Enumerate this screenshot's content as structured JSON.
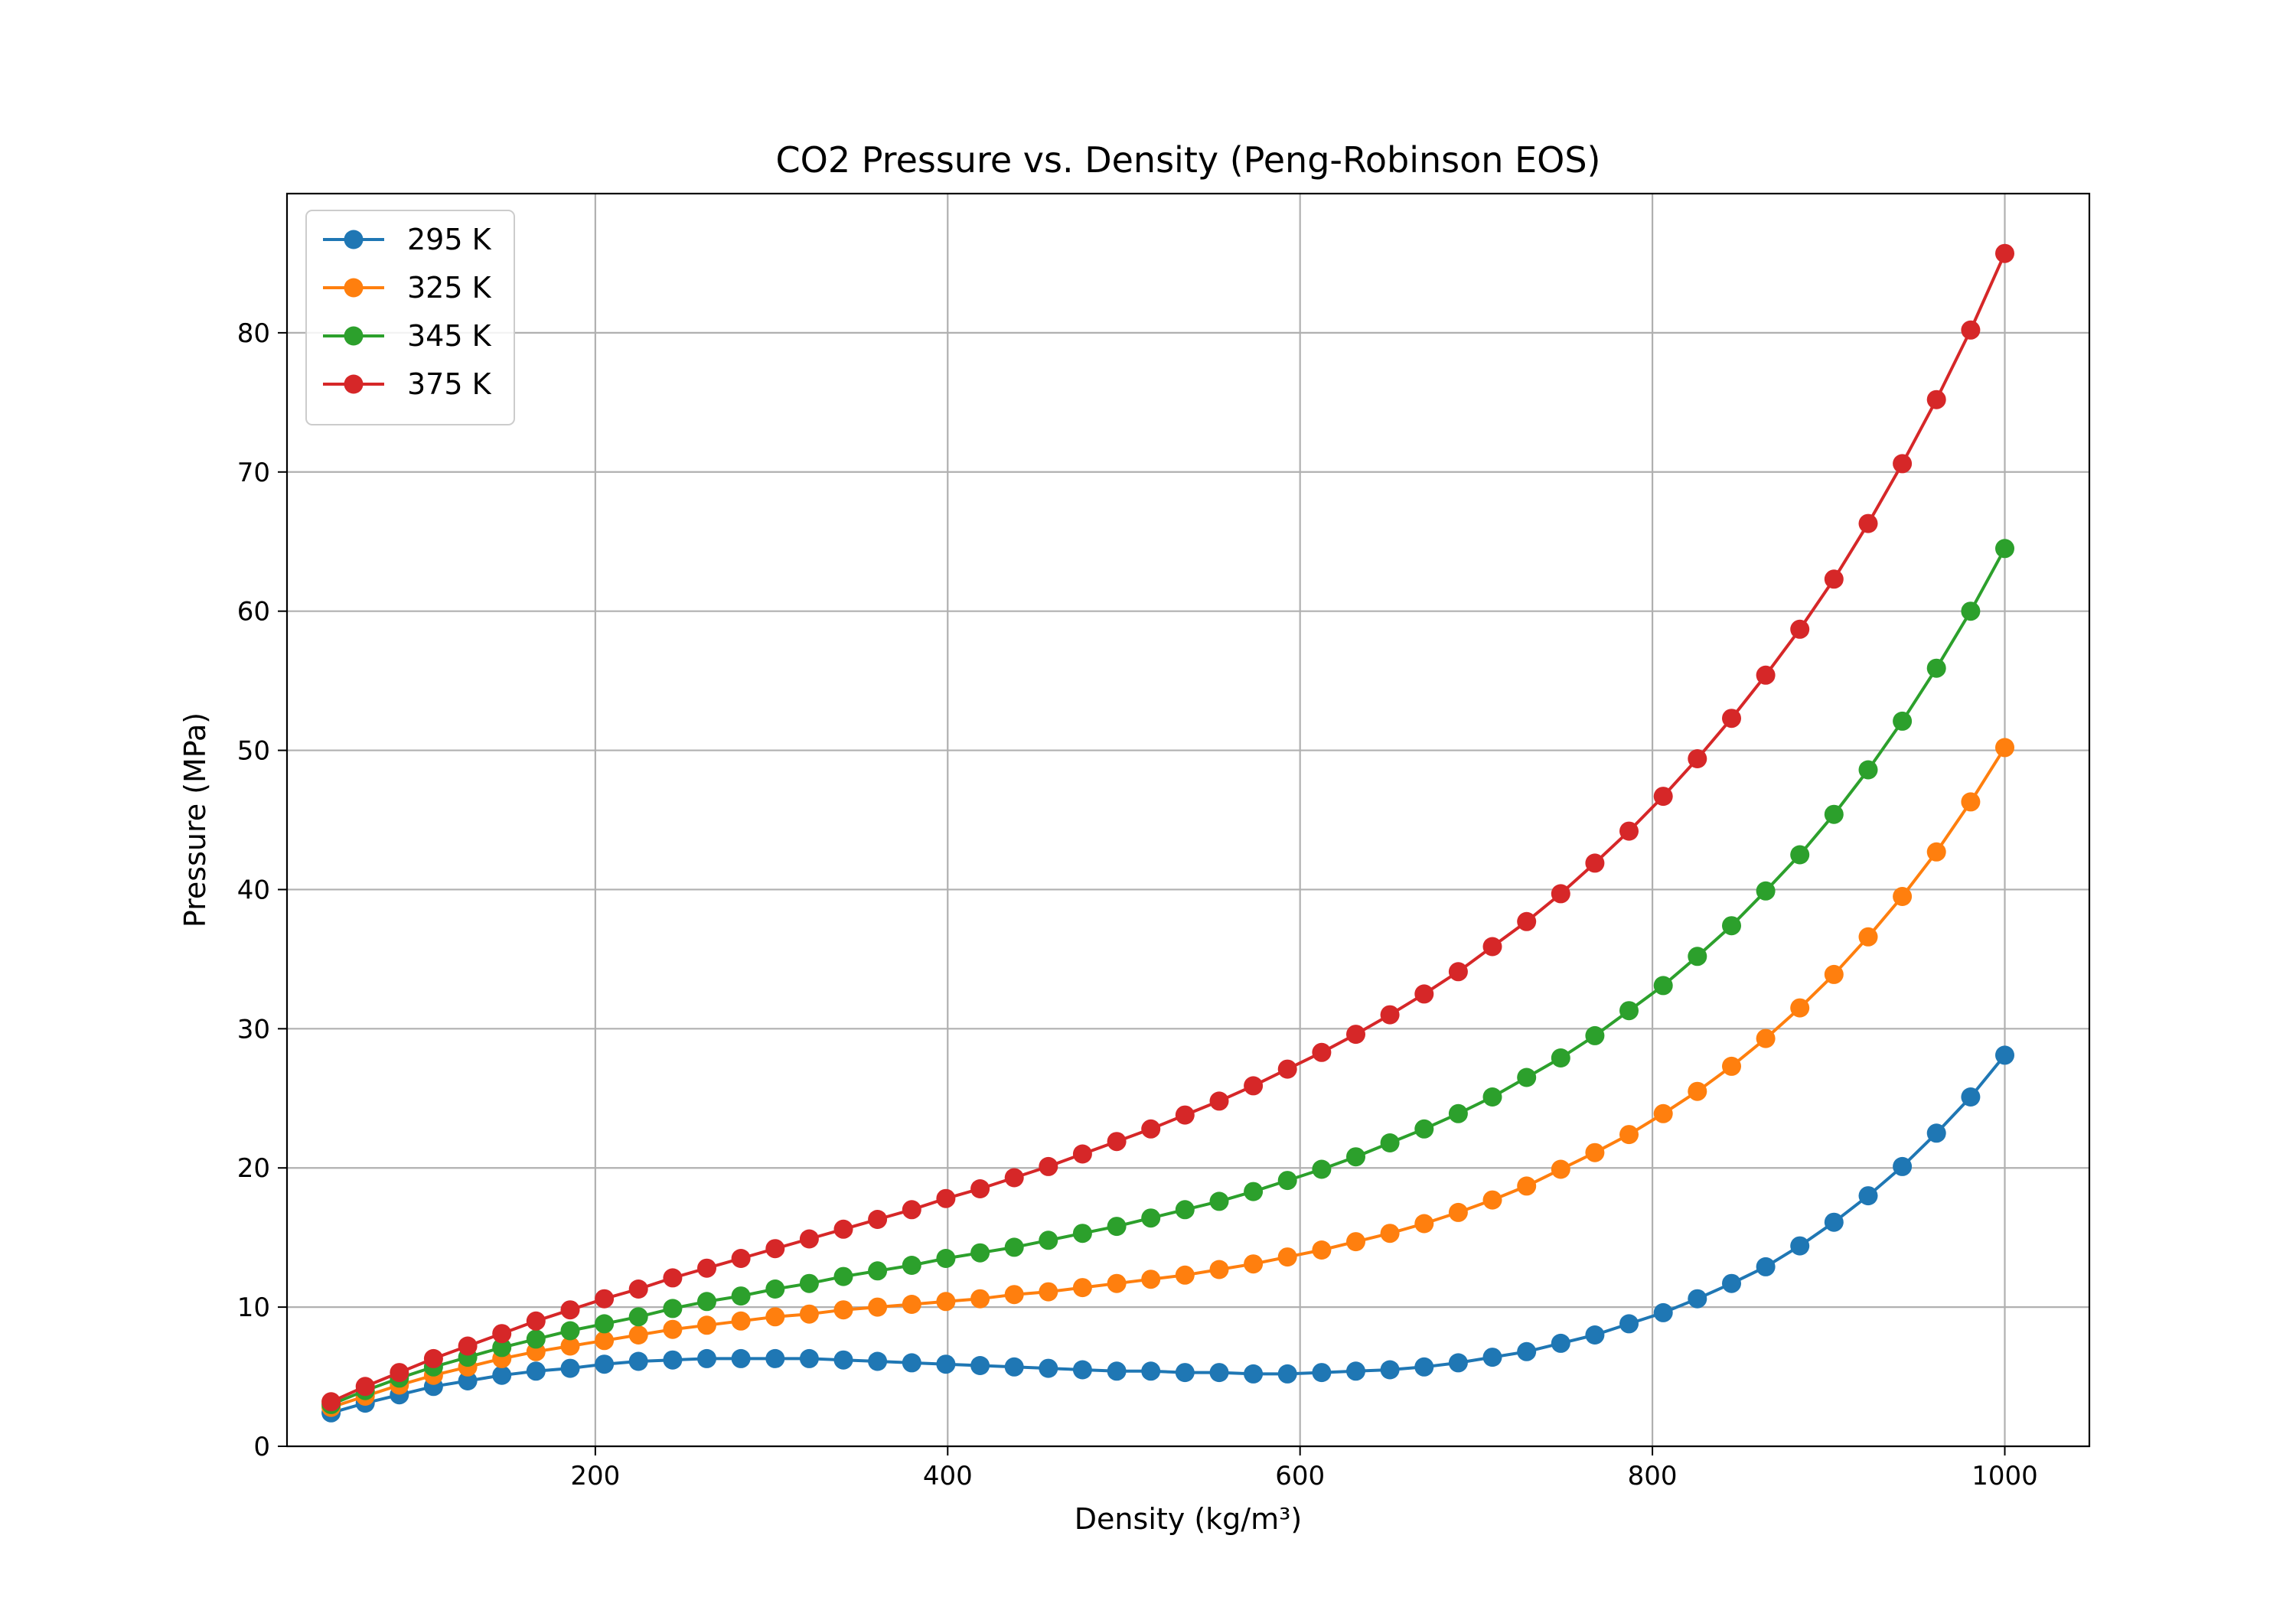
{
  "chart_data": {
    "type": "line",
    "title": "CO2 Pressure vs. Density (Peng-Robinson EOS)",
    "xlabel": "Density (kg/m³)",
    "ylabel": "Pressure (MPa)",
    "xlim": [
      25,
      1048
    ],
    "ylim": [
      0,
      90
    ],
    "xticks": [
      200,
      400,
      600,
      800,
      1000
    ],
    "yticks": [
      0,
      10,
      20,
      30,
      40,
      50,
      60,
      70,
      80
    ],
    "grid": true,
    "legend_position": "upper-left",
    "x": [
      50,
      69.39,
      88.78,
      108.16,
      127.55,
      146.94,
      166.33,
      185.71,
      205.1,
      224.49,
      243.88,
      263.27,
      282.65,
      302.04,
      321.43,
      340.82,
      360.2,
      379.59,
      398.98,
      418.37,
      437.76,
      457.14,
      476.53,
      495.92,
      515.31,
      534.69,
      554.08,
      573.47,
      592.86,
      612.24,
      631.63,
      651.02,
      670.41,
      689.8,
      709.18,
      728.57,
      747.96,
      767.35,
      786.73,
      806.12,
      825.51,
      844.9,
      864.29,
      883.67,
      903.06,
      922.45,
      941.84,
      961.22,
      980.61,
      1000
    ],
    "series": [
      {
        "name": "295 K",
        "color": "#1f77b4",
        "values": [
          2.4,
          3.1,
          3.7,
          4.3,
          4.7,
          5.1,
          5.4,
          5.6,
          5.9,
          6.1,
          6.2,
          6.3,
          6.3,
          6.3,
          6.3,
          6.2,
          6.1,
          6.0,
          5.9,
          5.8,
          5.7,
          5.6,
          5.5,
          5.4,
          5.4,
          5.3,
          5.3,
          5.2,
          5.2,
          5.3,
          5.4,
          5.5,
          5.7,
          6.0,
          6.4,
          6.8,
          7.4,
          8.0,
          8.8,
          9.6,
          10.6,
          11.7,
          12.9,
          14.4,
          16.1,
          18.0,
          20.1,
          22.5,
          25.1,
          28.1
        ]
      },
      {
        "name": "325 K",
        "color": "#ff7f0e",
        "values": [
          2.8,
          3.6,
          4.4,
          5.1,
          5.7,
          6.3,
          6.8,
          7.2,
          7.6,
          8.0,
          8.4,
          8.7,
          9.0,
          9.3,
          9.5,
          9.8,
          10.0,
          10.2,
          10.4,
          10.6,
          10.9,
          11.1,
          11.4,
          11.7,
          12.0,
          12.3,
          12.7,
          13.1,
          13.6,
          14.1,
          14.7,
          15.3,
          16.0,
          16.8,
          17.7,
          18.7,
          19.9,
          21.1,
          22.4,
          23.9,
          25.5,
          27.3,
          29.3,
          31.5,
          33.9,
          36.6,
          39.5,
          42.7,
          46.3,
          50.2
        ]
      },
      {
        "name": "345 K",
        "color": "#2ca02c",
        "values": [
          3.0,
          4.0,
          4.9,
          5.7,
          6.4,
          7.1,
          7.7,
          8.3,
          8.8,
          9.3,
          9.9,
          10.4,
          10.8,
          11.3,
          11.7,
          12.2,
          12.6,
          13.0,
          13.5,
          13.9,
          14.3,
          14.8,
          15.3,
          15.8,
          16.4,
          17.0,
          17.6,
          18.3,
          19.1,
          19.9,
          20.8,
          21.8,
          22.8,
          23.9,
          25.1,
          26.5,
          27.9,
          29.5,
          31.3,
          33.1,
          35.2,
          37.4,
          39.9,
          42.5,
          45.4,
          48.6,
          52.1,
          55.9,
          60.0,
          64.5
        ]
      },
      {
        "name": "375 K",
        "color": "#d62728",
        "values": [
          3.2,
          4.3,
          5.3,
          6.3,
          7.2,
          8.1,
          9.0,
          9.8,
          10.6,
          11.3,
          12.1,
          12.8,
          13.5,
          14.2,
          14.9,
          15.6,
          16.3,
          17.0,
          17.8,
          18.5,
          19.3,
          20.1,
          21.0,
          21.9,
          22.8,
          23.8,
          24.8,
          25.9,
          27.1,
          28.3,
          29.6,
          31.0,
          32.5,
          34.1,
          35.9,
          37.7,
          39.7,
          41.9,
          44.2,
          46.7,
          49.4,
          52.3,
          55.4,
          58.7,
          62.3,
          66.3,
          70.6,
          75.2,
          80.2,
          85.7
        ]
      }
    ]
  }
}
